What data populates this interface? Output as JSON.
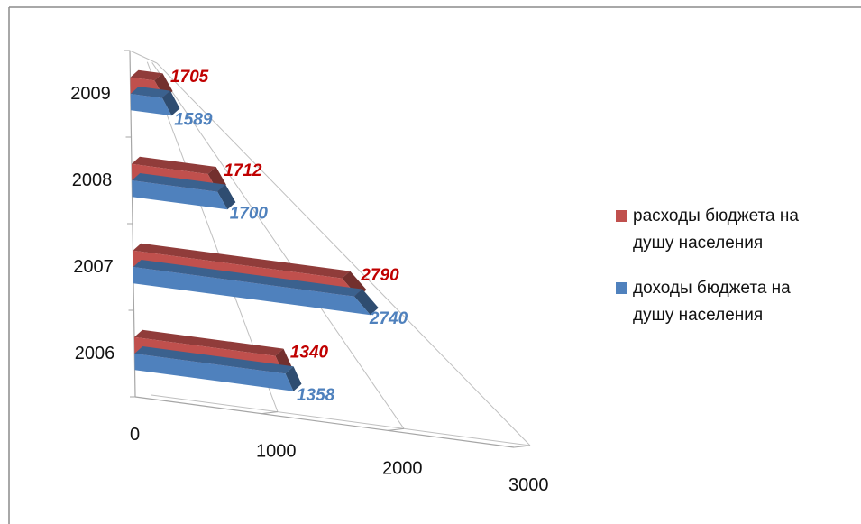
{
  "chart_data": {
    "type": "bar",
    "orientation": "horizontal",
    "three_d": true,
    "categories": [
      "2006",
      "2007",
      "2008",
      "2009"
    ],
    "series": [
      {
        "name": "доходы бюджета на душу населения",
        "legend_lines": [
          "доходы бюджета на",
          "душу населения"
        ],
        "values": [
          1358,
          2740,
          1700,
          1589
        ],
        "color": "#4f81bd",
        "label_color": "#4f81bd"
      },
      {
        "name": "расходы бюджета на душу населения",
        "legend_lines": [
          "расходы бюджета на",
          "душу населения"
        ],
        "values": [
          1340,
          2790,
          1712,
          1705
        ],
        "color": "#c0504d",
        "label_color": "#c00000"
      }
    ],
    "x_ticks": [
      "0",
      "1000",
      "2000",
      "3000"
    ],
    "xlim": [
      0,
      3000
    ],
    "grid": true,
    "legend_position": "right"
  }
}
